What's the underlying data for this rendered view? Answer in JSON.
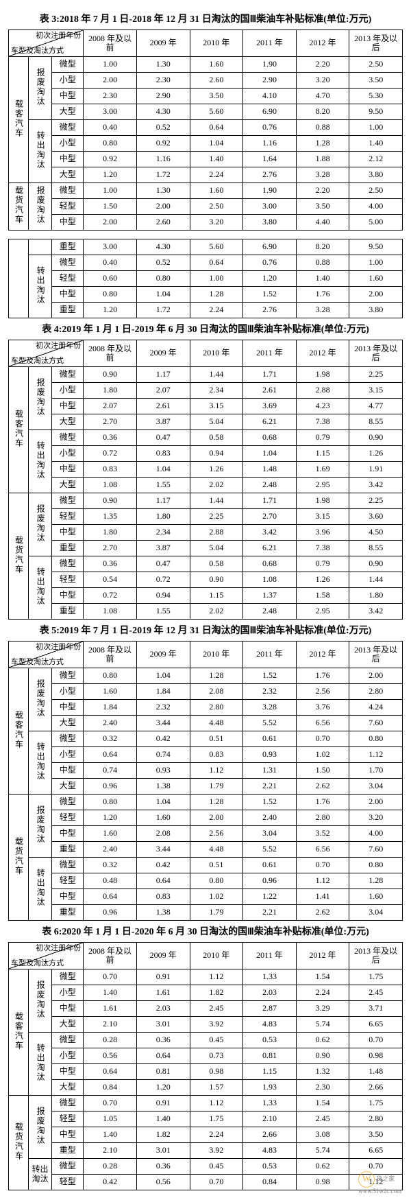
{
  "headers": {
    "diag_top": "初次注册年份",
    "diag_bot": "车型及淘汰方式",
    "years": [
      "2008 年及以前",
      "2009 年",
      "2010 年",
      "2011 年",
      "2012 年",
      "2013 年及以后"
    ]
  },
  "categories": {
    "passenger": "载客汽车",
    "cargo": "载货汽车",
    "scrap": "报废淘汰",
    "transfer": "转出淘汰",
    "sizes_p": [
      "微型",
      "小型",
      "中型",
      "大型"
    ],
    "sizes_c": [
      "微型",
      "轻型",
      "中型",
      "重型"
    ]
  },
  "watermark": {
    "brand": "货之家",
    "url": "www.51w2c.com"
  },
  "table3": {
    "title": "表 3:2018 年 7 月 1 日-2018 年 12 月 31 日淘汰的国Ⅲ柴油车补贴标准(单位:万元)",
    "p_scrap": [
      [
        "1.00",
        "1.30",
        "1.60",
        "1.90",
        "2.20",
        "2.50"
      ],
      [
        "2.00",
        "2.30",
        "2.60",
        "2.90",
        "3.20",
        "3.50"
      ],
      [
        "2.30",
        "2.90",
        "3.50",
        "4.10",
        "4.70",
        "5.30"
      ],
      [
        "3.00",
        "4.30",
        "5.60",
        "6.90",
        "8.20",
        "9.50"
      ]
    ],
    "p_transfer": [
      [
        "0.40",
        "0.52",
        "0.64",
        "0.76",
        "0.88",
        "1.00"
      ],
      [
        "0.80",
        "0.92",
        "1.04",
        "1.16",
        "1.28",
        "1.40"
      ],
      [
        "0.92",
        "1.16",
        "1.40",
        "1.64",
        "1.88",
        "2.12"
      ],
      [
        "1.20",
        "1.72",
        "2.24",
        "2.76",
        "3.28",
        "3.80"
      ]
    ],
    "c_scrap_a": [
      [
        "1.00",
        "1.30",
        "1.60",
        "1.90",
        "2.20",
        "2.50"
      ],
      [
        "1.50",
        "2.00",
        "2.50",
        "3.00",
        "3.50",
        "4.00"
      ],
      [
        "2.00",
        "2.60",
        "3.20",
        "3.80",
        "4.40",
        "5.00"
      ]
    ],
    "c_scrap_b": [
      [
        "3.00",
        "4.30",
        "5.60",
        "6.90",
        "8.20",
        "9.50"
      ]
    ],
    "c_transfer": [
      [
        "0.40",
        "0.52",
        "0.64",
        "0.76",
        "0.88",
        "1.00"
      ],
      [
        "0.60",
        "0.80",
        "1.00",
        "1.20",
        "1.40",
        "1.60"
      ],
      [
        "0.80",
        "1.04",
        "1.28",
        "1.52",
        "1.76",
        "2.00"
      ],
      [
        "1.20",
        "1.72",
        "2.24",
        "2.76",
        "3.28",
        "3.80"
      ]
    ]
  },
  "table4": {
    "title": "表 4:2019 年 1 月 1 日-2019 年 6 月 30 日淘汰的国Ⅲ柴油车补贴标准(单位:万元)",
    "p_scrap": [
      [
        "0.90",
        "1.17",
        "1.44",
        "1.71",
        "1.98",
        "2.25"
      ],
      [
        "1.80",
        "2.07",
        "2.34",
        "2.61",
        "2.88",
        "3.15"
      ],
      [
        "2.07",
        "2.61",
        "3.15",
        "3.69",
        "4.23",
        "4.77"
      ],
      [
        "2.70",
        "3.87",
        "5.04",
        "6.21",
        "7.38",
        "8.55"
      ]
    ],
    "p_transfer": [
      [
        "0.36",
        "0.47",
        "0.58",
        "0.68",
        "0.79",
        "0.90"
      ],
      [
        "0.72",
        "0.83",
        "0.94",
        "1.04",
        "1.15",
        "1.26"
      ],
      [
        "0.83",
        "1.04",
        "1.26",
        "1.48",
        "1.69",
        "1.91"
      ],
      [
        "1.08",
        "1.55",
        "2.02",
        "2.48",
        "2.95",
        "3.42"
      ]
    ],
    "c_scrap": [
      [
        "0.90",
        "1.17",
        "1.44",
        "1.71",
        "1.98",
        "2.25"
      ],
      [
        "1.35",
        "1.80",
        "2.25",
        "2.70",
        "3.15",
        "3.60"
      ],
      [
        "1.80",
        "2.34",
        "2.88",
        "3.42",
        "3.96",
        "4.50"
      ],
      [
        "2.70",
        "3.87",
        "5.04",
        "6.21",
        "7.38",
        "8.55"
      ]
    ],
    "c_transfer": [
      [
        "0.36",
        "0.47",
        "0.58",
        "0.68",
        "0.79",
        "0.90"
      ],
      [
        "0.54",
        "0.72",
        "0.90",
        "1.08",
        "1.26",
        "1.44"
      ],
      [
        "0.72",
        "0.94",
        "1.15",
        "1.37",
        "1.58",
        "1.80"
      ],
      [
        "1.08",
        "1.55",
        "2.02",
        "2.48",
        "2.95",
        "3.42"
      ]
    ]
  },
  "table5": {
    "title": "表 5:2019 年 7 月 1 日-2019 年 12 月 31 日淘汰的国Ⅲ柴油车补贴标准(单位:万元)",
    "p_scrap": [
      [
        "0.80",
        "1.04",
        "1.28",
        "1.52",
        "1.76",
        "2.00"
      ],
      [
        "1.60",
        "1.84",
        "2.08",
        "2.32",
        "2.56",
        "2.80"
      ],
      [
        "1.84",
        "2.32",
        "2.80",
        "3.28",
        "3.76",
        "4.24"
      ],
      [
        "2.40",
        "3.44",
        "4.48",
        "5.52",
        "6.56",
        "7.60"
      ]
    ],
    "p_transfer": [
      [
        "0.32",
        "0.42",
        "0.51",
        "0.61",
        "0.70",
        "0.80"
      ],
      [
        "0.64",
        "0.74",
        "0.83",
        "0.93",
        "1.02",
        "1.12"
      ],
      [
        "0.74",
        "0.93",
        "1.12",
        "1.31",
        "1.50",
        "1.70"
      ],
      [
        "0.96",
        "1.38",
        "1.79",
        "2.21",
        "2.62",
        "3.04"
      ]
    ],
    "c_scrap": [
      [
        "0.80",
        "1.04",
        "1.28",
        "1.52",
        "1.76",
        "2.00"
      ],
      [
        "1.20",
        "1.60",
        "2.00",
        "2.40",
        "2.80",
        "3.20"
      ],
      [
        "1.60",
        "2.08",
        "2.56",
        "3.04",
        "3.52",
        "4.00"
      ],
      [
        "2.40",
        "3.44",
        "4.48",
        "5.52",
        "6.56",
        "7.60"
      ]
    ],
    "c_transfer": [
      [
        "0.32",
        "0.42",
        "0.51",
        "0.61",
        "0.70",
        "0.80"
      ],
      [
        "0.48",
        "0.64",
        "0.80",
        "0.96",
        "1.12",
        "1.28"
      ],
      [
        "0.64",
        "0.83",
        "1.02",
        "1.22",
        "1.41",
        "1.60"
      ],
      [
        "0.96",
        "1.38",
        "1.79",
        "2.21",
        "2.62",
        "3.04"
      ]
    ]
  },
  "table6": {
    "title": "表 6:2020 年 1 月 1 日-2020 年 6 月 30 日淘汰的国Ⅲ柴油车补贴标准(单位:万元)",
    "p_scrap": [
      [
        "0.70",
        "0.91",
        "1.12",
        "1.33",
        "1.54",
        "1.75"
      ],
      [
        "1.40",
        "1.61",
        "1.82",
        "2.03",
        "2.24",
        "2.45"
      ],
      [
        "1.61",
        "2.03",
        "2.45",
        "2.87",
        "3.29",
        "3.71"
      ],
      [
        "2.10",
        "3.01",
        "3.92",
        "4.83",
        "5.74",
        "6.65"
      ]
    ],
    "p_transfer": [
      [
        "0.28",
        "0.36",
        "0.45",
        "0.53",
        "0.62",
        "0.70"
      ],
      [
        "0.56",
        "0.64",
        "0.73",
        "0.81",
        "0.90",
        "0.98"
      ],
      [
        "0.64",
        "0.81",
        "0.98",
        "1.15",
        "1.32",
        "1.48"
      ],
      [
        "0.84",
        "1.20",
        "1.57",
        "1.93",
        "2.30",
        "2.66"
      ]
    ],
    "c_scrap": [
      [
        "0.70",
        "0.91",
        "1.12",
        "1.33",
        "1.54",
        "1.75"
      ],
      [
        "1.05",
        "1.40",
        "1.75",
        "2.10",
        "2.45",
        "2.80"
      ],
      [
        "1.40",
        "1.82",
        "2.24",
        "2.66",
        "3.08",
        "3.50"
      ],
      [
        "2.10",
        "3.01",
        "3.92",
        "4.83",
        "5.74",
        "6.65"
      ]
    ],
    "c_transfer": [
      [
        "0.28",
        "0.36",
        "0.45",
        "0.53",
        "0.62",
        "0.70"
      ],
      [
        "0.42",
        "0.56",
        "0.70",
        "0.84",
        "0.98",
        "1.12"
      ]
    ]
  }
}
